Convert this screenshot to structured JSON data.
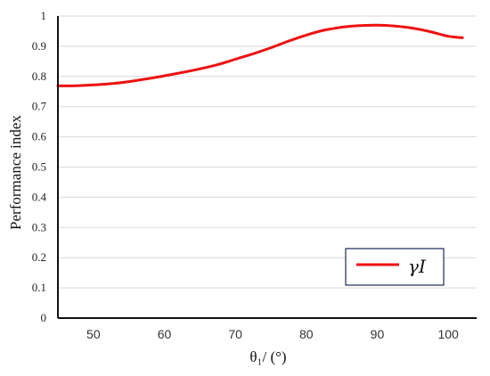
{
  "chart_data": {
    "type": "line",
    "xlabel": "θ₁/ (°)",
    "ylabel": "Performance index",
    "xlim": [
      45,
      104
    ],
    "ylim": [
      0,
      1
    ],
    "xticks": [
      50,
      60,
      70,
      80,
      90,
      100
    ],
    "xtick_labels": [
      "50",
      "60",
      "70",
      "80",
      "90",
      "100"
    ],
    "yticks": [
      0,
      0.1,
      0.2,
      0.3,
      0.4,
      0.5,
      0.6,
      0.7,
      0.8,
      0.9,
      1
    ],
    "ytick_labels": [
      "0",
      "0.1",
      "0.2",
      "0.3",
      "0.4",
      "0.5",
      "0.6",
      "0.7",
      "0.8",
      "0.9",
      "1"
    ],
    "grid": "horizontal",
    "legend_position": "bottom-right",
    "series": [
      {
        "name": "γI",
        "color": "#ee1111",
        "x": [
          45,
          47.5,
          50,
          52.5,
          55,
          57.5,
          60,
          62.5,
          65,
          67.5,
          70,
          72.5,
          75,
          77.5,
          80,
          82.5,
          85,
          87.5,
          90,
          92.5,
          95,
          97.5,
          100,
          102
        ],
        "y": [
          0.769,
          0.769,
          0.772,
          0.776,
          0.783,
          0.792,
          0.802,
          0.813,
          0.825,
          0.839,
          0.857,
          0.875,
          0.895,
          0.917,
          0.937,
          0.953,
          0.963,
          0.968,
          0.97,
          0.967,
          0.96,
          0.948,
          0.933,
          0.928
        ]
      }
    ]
  }
}
